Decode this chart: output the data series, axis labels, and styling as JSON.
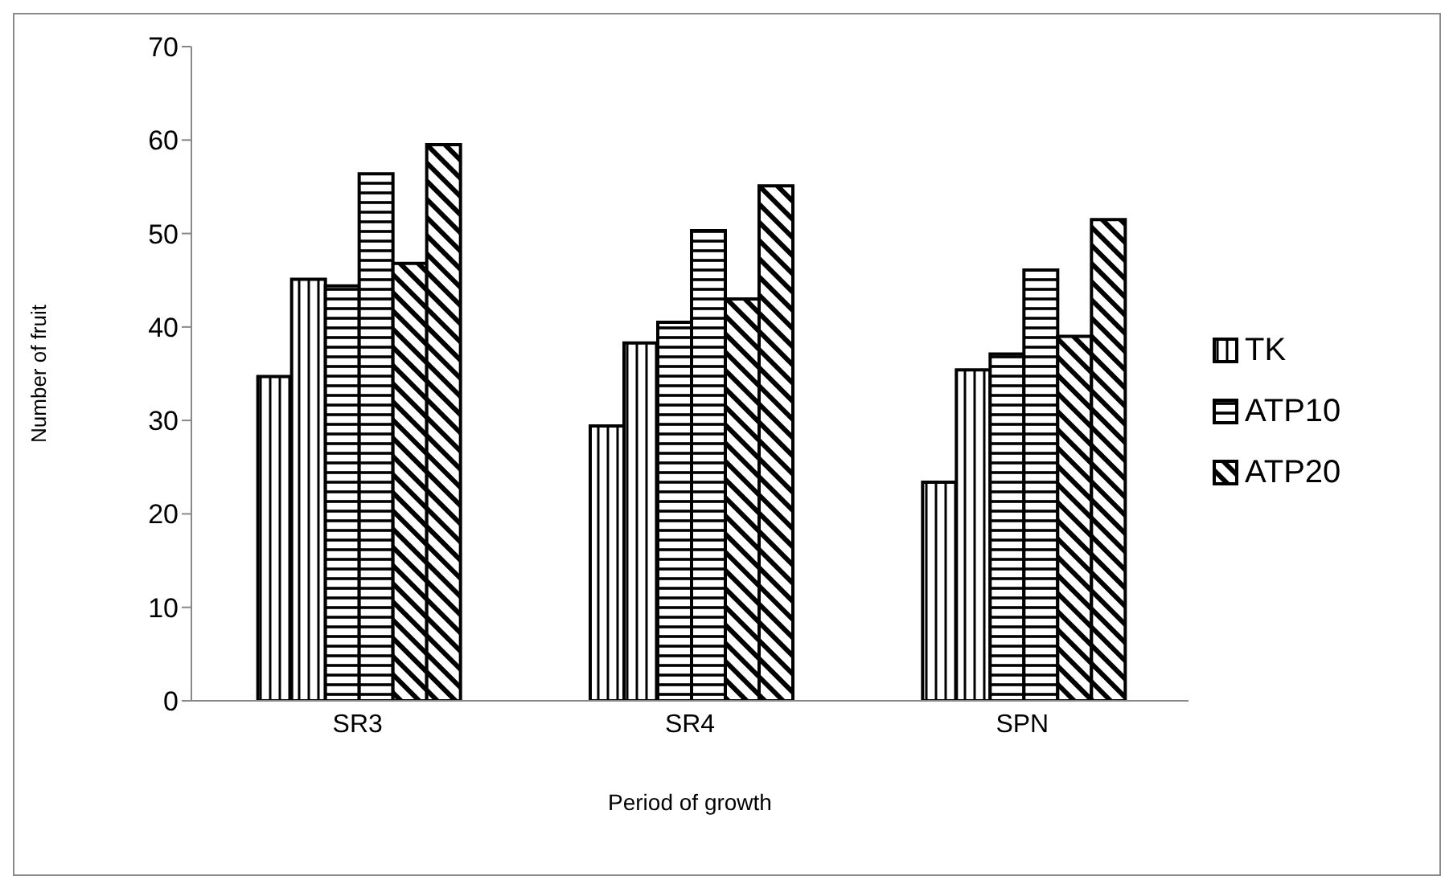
{
  "chart_data": {
    "type": "bar",
    "xlabel": "Period of growth",
    "ylabel": "Number of  fruit",
    "categories": [
      "SR3",
      "SR4",
      "SPN"
    ],
    "series": [
      {
        "name": "TK",
        "color": "#000000",
        "values": [
          34.7,
          29.4,
          23.4
        ]
      },
      {
        "color": "#000000",
        "values": [
          45.1,
          38.3,
          35.4
        ]
      },
      {
        "name": "ATP10",
        "color": "#000000",
        "values": [
          44.4,
          40.5,
          37.1
        ]
      },
      {
        "color": "#000000",
        "values": [
          56.4,
          50.3,
          46.1
        ]
      },
      {
        "name": "ATP20",
        "color": "#000000",
        "values": [
          46.8,
          43.0,
          39.0
        ]
      },
      {
        "color": "#000000",
        "values": [
          59.5,
          55.1,
          51.5
        ]
      }
    ],
    "ylim": [
      0,
      70
    ],
    "yticks": [
      0,
      10,
      20,
      30,
      40,
      50,
      60,
      70
    ],
    "legend": "right"
  }
}
